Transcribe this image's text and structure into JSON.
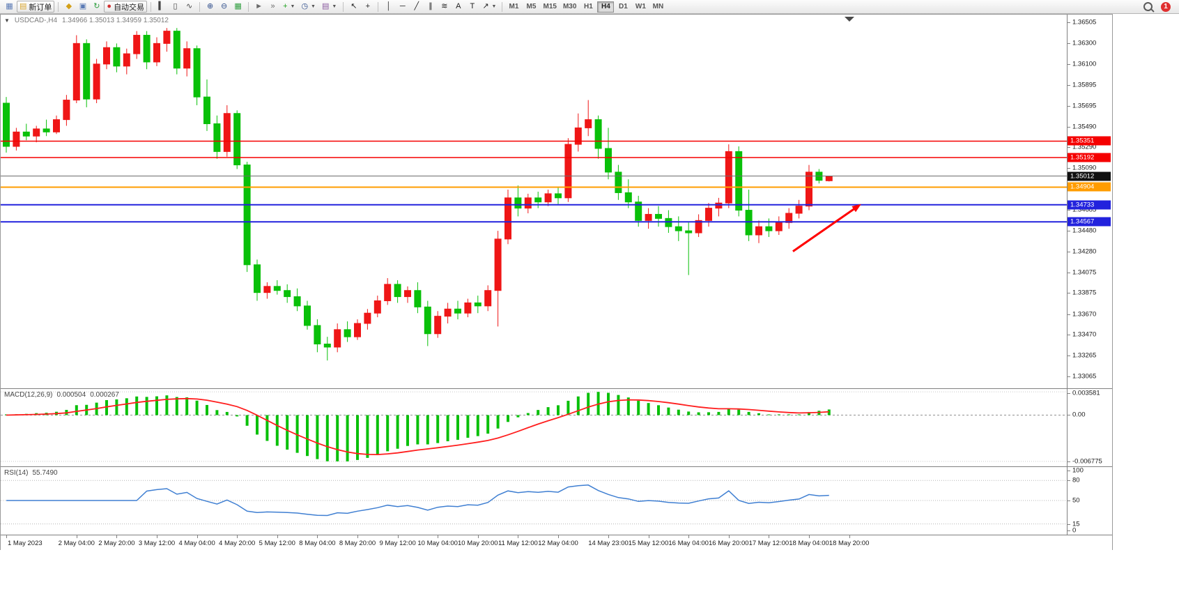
{
  "toolbar": {
    "groups": [
      [
        {
          "name": "chart-window-icon-button",
          "icon": "candlestick-chart-icon",
          "glyph": "▦",
          "color": "#5a7ab5"
        },
        {
          "name": "new-order-button",
          "icon": "new-order-icon",
          "glyph": "▤",
          "color": "#d9a62e",
          "label": "新订单"
        }
      ],
      [
        {
          "name": "market-watch-button",
          "icon": "market-watch-icon",
          "glyph": "◆",
          "color": "#d4a017"
        },
        {
          "name": "data-window-button",
          "icon": "data-window-icon",
          "glyph": "▣",
          "color": "#5a7ab5"
        },
        {
          "name": "refresh-button",
          "icon": "refresh-icon",
          "glyph": "↻",
          "color": "#2e9e3e"
        },
        {
          "name": "auto-trading-button",
          "icon": "auto-trading-icon",
          "glyph": "●",
          "color": "#d23030",
          "label": "自动交易"
        }
      ],
      [
        {
          "name": "bar-chart-button",
          "icon": "bar-chart-icon",
          "glyph": "▍",
          "color": "#444444"
        },
        {
          "name": "candlestick-button",
          "icon": "candlestick-icon",
          "glyph": "▯",
          "color": "#444444"
        },
        {
          "name": "line-chart-button",
          "icon": "line-chart-icon",
          "glyph": "∿",
          "color": "#444444"
        }
      ],
      [
        {
          "name": "zoom-in-button",
          "icon": "zoom-in-icon",
          "glyph": "⊕",
          "color": "#33518e"
        },
        {
          "name": "zoom-out-button",
          "icon": "zoom-out-icon",
          "glyph": "⊖",
          "color": "#33518e"
        },
        {
          "name": "tile-windows-button",
          "icon": "tile-windows-icon",
          "glyph": "▦",
          "color": "#2e9e3e"
        }
      ],
      [
        {
          "name": "auto-scroll-button",
          "icon": "auto-scroll-icon",
          "glyph": "►",
          "color": "#6a6a6a"
        },
        {
          "name": "chart-shift-button",
          "icon": "chart-shift-icon",
          "glyph": "»",
          "color": "#6a6a6a"
        },
        {
          "name": "indicators-button",
          "icon": "indicators-icon",
          "glyph": "+",
          "color": "#1da11d",
          "dropdown": true
        },
        {
          "name": "periods-button",
          "icon": "clock-icon",
          "glyph": "◷",
          "color": "#33518e",
          "dropdown": true
        },
        {
          "name": "templates-button",
          "icon": "template-icon",
          "glyph": "▤",
          "color": "#8a5aa0",
          "dropdown": true
        }
      ],
      [
        {
          "name": "cursor-button",
          "icon": "cursor-icon",
          "glyph": "↖",
          "color": "#222222"
        },
        {
          "name": "crosshair-button",
          "icon": "crosshair-icon",
          "glyph": "+",
          "color": "#222222"
        }
      ],
      [
        {
          "name": "vertical-line-button",
          "icon": "vertical-line-icon",
          "glyph": "│",
          "color": "#222222"
        },
        {
          "name": "horizontal-line-button",
          "icon": "horizontal-line-icon",
          "glyph": "─",
          "color": "#222222"
        },
        {
          "name": "trendline-button",
          "icon": "trendline-icon",
          "glyph": "╱",
          "color": "#222222"
        },
        {
          "name": "channel-button",
          "icon": "channel-icon",
          "glyph": "∥",
          "color": "#222222"
        },
        {
          "name": "fibonacci-button",
          "icon": "fibonacci-icon",
          "glyph": "≋",
          "color": "#222222"
        },
        {
          "name": "text-button",
          "icon": "text-icon",
          "glyph": "A",
          "color": "#222222"
        },
        {
          "name": "text-label-button",
          "icon": "text-label-icon",
          "glyph": "T",
          "color": "#222222"
        },
        {
          "name": "arrows-button",
          "icon": "arrow-object-icon",
          "glyph": "↗",
          "color": "#222222",
          "dropdown": true
        }
      ]
    ],
    "timeframes": [
      "M1",
      "M5",
      "M15",
      "M30",
      "H1",
      "H4",
      "D1",
      "W1",
      "MN"
    ],
    "active_timeframe": "H4",
    "notification_count": "1"
  },
  "chart": {
    "symbol_period": "USDCAD-,H4",
    "ohlc_line": "1.34966 1.35013 1.34959 1.35012"
  },
  "chart_data": {
    "type": "candlestick",
    "symbol": "USDCAD-",
    "timeframe": "H4",
    "up_color": "#ef1616",
    "down_color": "#09c009",
    "price_range": {
      "top": 1.3658,
      "bottom": 1.3295
    },
    "price_ticks": [
      "1.36505",
      "1.36300",
      "1.36100",
      "1.35895",
      "1.35695",
      "1.35490",
      "1.35290",
      "1.35090",
      "1.34885",
      "1.34685",
      "1.34480",
      "1.34280",
      "1.34075",
      "1.33875",
      "1.33670",
      "1.33470",
      "1.33265",
      "1.33065"
    ],
    "hlines": [
      {
        "name": "resistance-line-1",
        "price": 1.35351,
        "label": "1.35351",
        "color": "#f50000",
        "width": 1.5
      },
      {
        "name": "resistance-line-2",
        "price": 1.35192,
        "label": "1.35192",
        "color": "#f50000",
        "width": 1.5
      },
      {
        "name": "current-price-line",
        "price": 1.35012,
        "label": "1.35012",
        "color": "#6b6b6b",
        "width": 1,
        "tag_bg": "#101010"
      },
      {
        "name": "pivot-line",
        "price": 1.34904,
        "label": "1.34904",
        "color": "#ff9c00",
        "width": 2
      },
      {
        "name": "support-line-1",
        "price": 1.34733,
        "label": "1.34733",
        "color": "#2222dd",
        "width": 2
      },
      {
        "name": "support-line-2",
        "price": 1.34567,
        "label": "1.34567",
        "color": "#2222dd",
        "width": 2
      }
    ],
    "arrow_annotation": {
      "name": "red-arrow",
      "color": "#ff0000",
      "bar_from": 78.4,
      "price_from": 1.3428,
      "bar_to": 85.2,
      "price_to": 1.3474,
      "width": 3
    },
    "candles_ohlc": [
      [
        1.3572,
        1.3578,
        1.3524,
        1.353
      ],
      [
        1.353,
        1.3548,
        1.3526,
        1.3544
      ],
      [
        1.3544,
        1.3552,
        1.3536,
        1.354
      ],
      [
        1.354,
        1.355,
        1.3534,
        1.3547
      ],
      [
        1.3547,
        1.3556,
        1.354,
        1.3544
      ],
      [
        1.3544,
        1.356,
        1.3542,
        1.3556
      ],
      [
        1.3556,
        1.358,
        1.355,
        1.3575
      ],
      [
        1.3575,
        1.3638,
        1.3572,
        1.363
      ],
      [
        1.363,
        1.3634,
        1.3568,
        1.3576
      ],
      [
        1.3576,
        1.3615,
        1.3572,
        1.361
      ],
      [
        1.361,
        1.3632,
        1.3605,
        1.3626
      ],
      [
        1.3626,
        1.363,
        1.3602,
        1.3608
      ],
      [
        1.3608,
        1.3625,
        1.36,
        1.362
      ],
      [
        1.362,
        1.3642,
        1.3615,
        1.3638
      ],
      [
        1.3638,
        1.3642,
        1.3605,
        1.3612
      ],
      [
        1.3612,
        1.3636,
        1.3608,
        1.363
      ],
      [
        1.363,
        1.3645,
        1.3622,
        1.3642
      ],
      [
        1.3642,
        1.3645,
        1.36,
        1.3606
      ],
      [
        1.3606,
        1.3632,
        1.3598,
        1.3625
      ],
      [
        1.3625,
        1.3628,
        1.357,
        1.3578
      ],
      [
        1.3578,
        1.3595,
        1.3545,
        1.3552
      ],
      [
        1.3552,
        1.356,
        1.3518,
        1.3525
      ],
      [
        1.3525,
        1.357,
        1.352,
        1.3562
      ],
      [
        1.3562,
        1.3565,
        1.3508,
        1.3512
      ],
      [
        1.3512,
        1.3515,
        1.3408,
        1.3415
      ],
      [
        1.3415,
        1.342,
        1.338,
        1.3388
      ],
      [
        1.3388,
        1.3398,
        1.3382,
        1.3394
      ],
      [
        1.3394,
        1.34,
        1.3386,
        1.339
      ],
      [
        1.339,
        1.3396,
        1.3378,
        1.3384
      ],
      [
        1.3384,
        1.3392,
        1.337,
        1.3375
      ],
      [
        1.3375,
        1.338,
        1.3352,
        1.3356
      ],
      [
        1.3356,
        1.3362,
        1.333,
        1.3338
      ],
      [
        1.3338,
        1.3345,
        1.3322,
        1.3335
      ],
      [
        1.3335,
        1.3358,
        1.333,
        1.3352
      ],
      [
        1.3352,
        1.336,
        1.334,
        1.3345
      ],
      [
        1.3345,
        1.3362,
        1.3342,
        1.3358
      ],
      [
        1.3358,
        1.3372,
        1.3352,
        1.3368
      ],
      [
        1.3368,
        1.3385,
        1.3364,
        1.338
      ],
      [
        1.338,
        1.3402,
        1.3376,
        1.3396
      ],
      [
        1.3396,
        1.34,
        1.3378,
        1.3384
      ],
      [
        1.3384,
        1.3394,
        1.3378,
        1.339
      ],
      [
        1.339,
        1.3398,
        1.3368,
        1.3374
      ],
      [
        1.3374,
        1.338,
        1.3336,
        1.3348
      ],
      [
        1.3348,
        1.337,
        1.3344,
        1.3365
      ],
      [
        1.3365,
        1.3378,
        1.3358,
        1.3372
      ],
      [
        1.3372,
        1.338,
        1.3362,
        1.3368
      ],
      [
        1.3368,
        1.3382,
        1.3364,
        1.3378
      ],
      [
        1.3378,
        1.3385,
        1.3368,
        1.3375
      ],
      [
        1.3375,
        1.3395,
        1.337,
        1.339
      ],
      [
        1.339,
        1.3448,
        1.3355,
        1.344
      ],
      [
        1.344,
        1.3488,
        1.3435,
        1.348
      ],
      [
        1.348,
        1.3492,
        1.3462,
        1.347
      ],
      [
        1.347,
        1.3484,
        1.3465,
        1.348
      ],
      [
        1.348,
        1.3486,
        1.347,
        1.3476
      ],
      [
        1.3476,
        1.3488,
        1.3472,
        1.3484
      ],
      [
        1.3484,
        1.349,
        1.3474,
        1.348
      ],
      [
        1.348,
        1.3538,
        1.3476,
        1.3532
      ],
      [
        1.3532,
        1.3562,
        1.3525,
        1.3548
      ],
      [
        1.3548,
        1.3575,
        1.354,
        1.3556
      ],
      [
        1.3556,
        1.356,
        1.3518,
        1.3528
      ],
      [
        1.3528,
        1.3548,
        1.3498,
        1.3505
      ],
      [
        1.3505,
        1.3512,
        1.3478,
        1.3485
      ],
      [
        1.3485,
        1.3498,
        1.347,
        1.3476
      ],
      [
        1.3476,
        1.3482,
        1.3452,
        1.3458
      ],
      [
        1.3458,
        1.347,
        1.345,
        1.3464
      ],
      [
        1.3464,
        1.3472,
        1.3452,
        1.346
      ],
      [
        1.346,
        1.3468,
        1.3446,
        1.3452
      ],
      [
        1.3452,
        1.3462,
        1.3438,
        1.3448
      ],
      [
        1.3448,
        1.3456,
        1.3405,
        1.3446
      ],
      [
        1.3446,
        1.3464,
        1.3442,
        1.3458
      ],
      [
        1.3458,
        1.3475,
        1.3452,
        1.347
      ],
      [
        1.347,
        1.348,
        1.3462,
        1.3475
      ],
      [
        1.3475,
        1.3532,
        1.347,
        1.3525
      ],
      [
        1.3525,
        1.353,
        1.3462,
        1.3468
      ],
      [
        1.3468,
        1.3488,
        1.3438,
        1.3444
      ],
      [
        1.3444,
        1.3458,
        1.3436,
        1.3452
      ],
      [
        1.3452,
        1.346,
        1.3442,
        1.3448
      ],
      [
        1.3448,
        1.3462,
        1.3444,
        1.3456
      ],
      [
        1.3456,
        1.347,
        1.345,
        1.3465
      ],
      [
        1.3465,
        1.3478,
        1.346,
        1.3472
      ],
      [
        1.3472,
        1.3512,
        1.3468,
        1.3505
      ],
      [
        1.3505,
        1.3508,
        1.3494,
        1.3497
      ],
      [
        1.34966,
        1.35013,
        1.34959,
        1.35012
      ]
    ],
    "x_labels": [
      {
        "text": "1 May 2023",
        "bar": 0
      },
      {
        "text": "2 May 04:00",
        "bar": 7
      },
      {
        "text": "2 May 20:00",
        "bar": 11
      },
      {
        "text": "3 May 12:00",
        "bar": 15
      },
      {
        "text": "4 May 04:00",
        "bar": 19
      },
      {
        "text": "4 May 20:00",
        "bar": 23
      },
      {
        "text": "5 May 12:00",
        "bar": 27
      },
      {
        "text": "8 May 04:00",
        "bar": 31
      },
      {
        "text": "8 May 20:00",
        "bar": 35
      },
      {
        "text": "9 May 12:00",
        "bar": 39
      },
      {
        "text": "10 May 04:00",
        "bar": 43
      },
      {
        "text": "10 May 20:00",
        "bar": 47
      },
      {
        "text": "11 May 12:00",
        "bar": 51
      },
      {
        "text": "12 May 04:00",
        "bar": 55
      },
      {
        "text": "14 May 23:00",
        "bar": 60
      },
      {
        "text": "15 May 12:00",
        "bar": 64
      },
      {
        "text": "16 May 04:00",
        "bar": 68
      },
      {
        "text": "16 May 20:00",
        "bar": 72
      },
      {
        "text": "17 May 12:00",
        "bar": 76
      },
      {
        "text": "18 May 04:00",
        "bar": 80
      },
      {
        "text": "18 May 20:00",
        "bar": 84
      }
    ],
    "indicators": {
      "macd": {
        "label": "MACD(12,26,9)",
        "value_main": "0.000504",
        "value_signal": "0.000267",
        "scale_max_label": "0.003581",
        "scale_zero_label": "0.00",
        "scale_min_label": "-0.006775",
        "histogram_color": "#09c009",
        "signal_color": "#ff1e1e",
        "fast": 12,
        "slow": 26,
        "signal": 9
      },
      "rsi": {
        "label": "RSI(14)",
        "value": "55.7490",
        "period": 14,
        "line_color": "#3f7fd2",
        "level_lines": [
          80,
          50,
          15
        ],
        "scale_labels": [
          [
            "100",
            100
          ],
          [
            "80",
            80
          ],
          [
            "50",
            50
          ],
          [
            "15",
            15
          ],
          [
            "0",
            0
          ]
        ]
      }
    }
  }
}
